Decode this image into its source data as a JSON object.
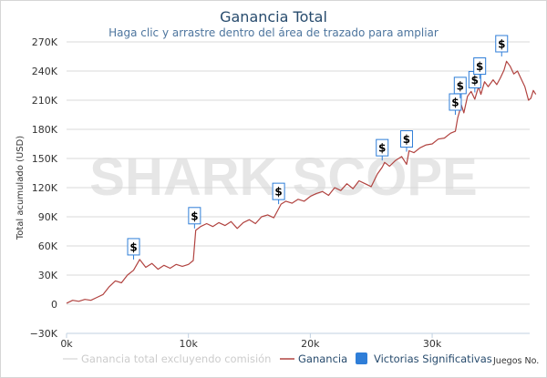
{
  "chart_data": {
    "type": "line",
    "title": "Ganancia Total",
    "subtitle": "Haga clic y arrastre dentro del área de trazado para ampliar",
    "ylabel": "Total acumulado (USD)",
    "xlabel": "Juegos No.",
    "watermark": "SHARK SCOPE",
    "xlim": [
      0,
      38000
    ],
    "ylim": [
      -30000,
      270000
    ],
    "x_ticks": [
      0,
      10000,
      20000,
      30000
    ],
    "x_tick_labels": [
      "0k",
      "10k",
      "20k",
      "30k"
    ],
    "y_ticks": [
      -30000,
      0,
      30000,
      60000,
      90000,
      120000,
      150000,
      180000,
      210000,
      240000,
      270000
    ],
    "y_tick_labels": [
      "−30K",
      "0",
      "30K",
      "60K",
      "90K",
      "120K",
      "150K",
      "180K",
      "210K",
      "240K",
      "270K"
    ],
    "grid": true,
    "legend_position": "bottom",
    "colors": {
      "title": "#274b6d",
      "subtitle": "#4d759e",
      "ganancia": "#b14340",
      "sin_comision": "#cccccc",
      "victorias": "#2f7ed8",
      "grid": "#d8d8d8",
      "watermark": "#e6e6e6"
    },
    "series": [
      {
        "name": "Ganancia total excluyendo comisión",
        "visible": false,
        "x": [],
        "y": []
      },
      {
        "name": "Ganancia",
        "x": [
          0,
          500,
          1000,
          1500,
          2000,
          2500,
          3000,
          3500,
          4000,
          4500,
          5000,
          5500,
          6000,
          6500,
          7000,
          7500,
          8000,
          8500,
          9000,
          9500,
          10000,
          10400,
          10600,
          11000,
          11500,
          12000,
          12500,
          13000,
          13500,
          14000,
          14500,
          15000,
          15500,
          16000,
          16500,
          17000,
          17300,
          17600,
          18000,
          18500,
          19000,
          19500,
          20000,
          20500,
          21000,
          21500,
          22000,
          22500,
          23000,
          23500,
          24000,
          24500,
          25000,
          25500,
          25900,
          26100,
          26500,
          27000,
          27500,
          27900,
          28100,
          28500,
          29000,
          29500,
          30000,
          30500,
          31000,
          31500,
          31900,
          32100,
          32400,
          32600,
          32900,
          33200,
          33500,
          33800,
          34000,
          34300,
          34600,
          35000,
          35300,
          35600,
          35900,
          36100,
          36400,
          36700,
          37000,
          37300,
          37600,
          37900,
          38100,
          38300,
          38500
        ],
        "y": [
          1000,
          4000,
          3000,
          5000,
          4000,
          7000,
          10000,
          18000,
          24000,
          22000,
          30000,
          35000,
          46000,
          38000,
          42000,
          36000,
          40000,
          37000,
          41000,
          39000,
          41000,
          45000,
          76000,
          80000,
          83000,
          80000,
          84000,
          81000,
          85000,
          78000,
          84000,
          87000,
          83000,
          90000,
          92000,
          89000,
          96000,
          103000,
          106000,
          104000,
          108000,
          106000,
          111000,
          114000,
          116000,
          112000,
          120000,
          117000,
          124000,
          119000,
          127000,
          124000,
          121000,
          134000,
          141000,
          146000,
          142000,
          148000,
          152000,
          144000,
          158000,
          156000,
          161000,
          164000,
          165000,
          170000,
          171000,
          176000,
          178000,
          192000,
          205000,
          197000,
          214000,
          219000,
          211000,
          224000,
          216000,
          229000,
          224000,
          231000,
          226000,
          233000,
          241000,
          250000,
          245000,
          237000,
          240000,
          232000,
          224000,
          210000,
          212000,
          220000,
          216000
        ]
      }
    ],
    "victorias_significativas": {
      "name": "Victorias Significativas",
      "marker": "$",
      "points": [
        {
          "x": 5500,
          "y": 46000
        },
        {
          "x": 10500,
          "y": 78000
        },
        {
          "x": 17400,
          "y": 103000
        },
        {
          "x": 25900,
          "y": 148000
        },
        {
          "x": 27900,
          "y": 157000
        },
        {
          "x": 31900,
          "y": 195000
        },
        {
          "x": 32300,
          "y": 212000
        },
        {
          "x": 33500,
          "y": 218000
        },
        {
          "x": 33900,
          "y": 232000
        },
        {
          "x": 35700,
          "y": 255000
        }
      ]
    }
  }
}
